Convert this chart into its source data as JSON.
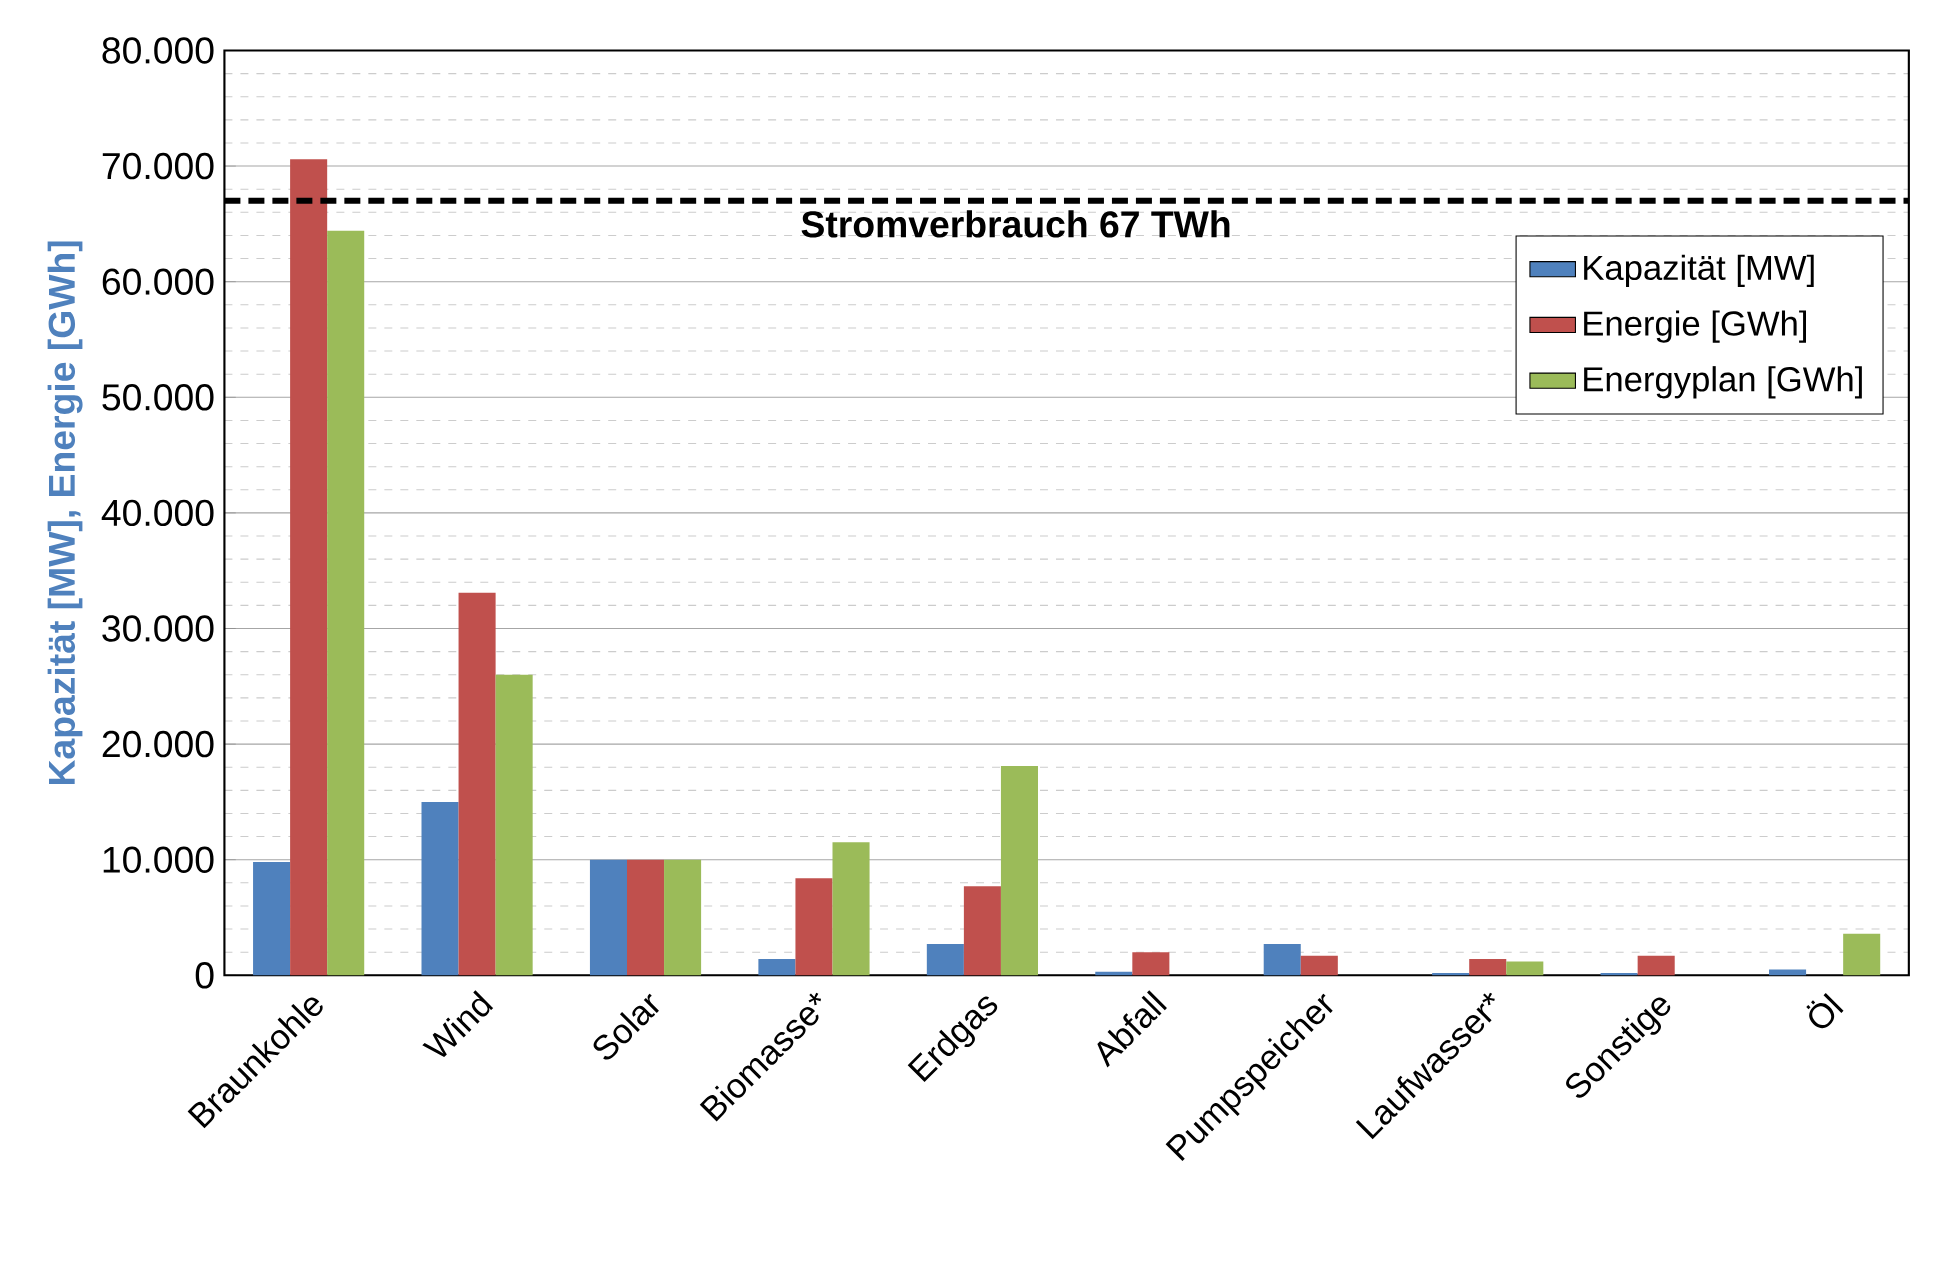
{
  "chart_data": {
    "type": "bar",
    "ylabel": "Kapazität [MW], Energie [GWh]",
    "categories": [
      "Braunkohle",
      "Wind",
      "Solar",
      "Biomasse*",
      "Erdgas",
      "Abfall",
      "Pumpspeicher",
      "Laufwasser*",
      "Sonstige",
      "Öl"
    ],
    "series": [
      {
        "name": "Kapazität [MW]",
        "color": "#4f81bd",
        "values": [
          9800,
          15000,
          10000,
          1400,
          2700,
          300,
          2700,
          200,
          200,
          500
        ]
      },
      {
        "name": "Energie [GWh]",
        "color": "#c0504d",
        "values": [
          70600,
          33100,
          10000,
          8400,
          7700,
          2000,
          1700,
          1400,
          1700,
          null
        ]
      },
      {
        "name": "Energyplan [GWh]",
        "color": "#9bbb59",
        "values": [
          64400,
          26000,
          10000,
          11500,
          18100,
          null,
          null,
          1200,
          null,
          3600
        ]
      }
    ],
    "ylim": [
      0,
      80000
    ],
    "yticks": [
      {
        "value": 0,
        "label": "0"
      },
      {
        "value": 10000,
        "label": "10.000"
      },
      {
        "value": 20000,
        "label": "20.000"
      },
      {
        "value": 30000,
        "label": "30.000"
      },
      {
        "value": 40000,
        "label": "40.000"
      },
      {
        "value": 50000,
        "label": "50.000"
      },
      {
        "value": 60000,
        "label": "60.000"
      },
      {
        "value": 70000,
        "label": "70.000"
      },
      {
        "value": 80000,
        "label": "80.000"
      }
    ],
    "ref_lines": [
      {
        "axis": "y",
        "value": 67000,
        "label": "Stromverbrauch 67 TWh",
        "color": "#000000",
        "line_style": "dashed"
      }
    ],
    "grid": true,
    "legend": "right"
  }
}
